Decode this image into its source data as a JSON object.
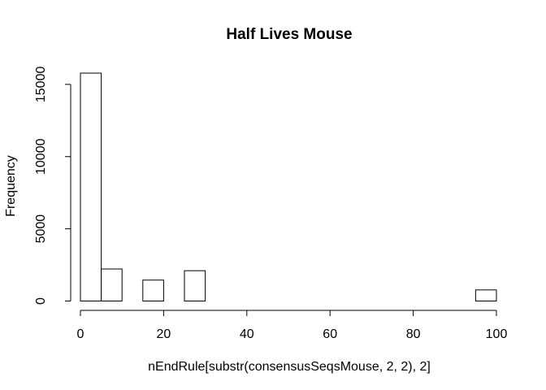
{
  "chart_data": {
    "type": "bar",
    "title": "Half Lives Mouse",
    "xlabel": "nEndRule[substr(consensusSeqsMouse, 2, 2), 2]",
    "ylabel": "Frequency",
    "bin_width": 5,
    "bins": [
      {
        "start": 0,
        "end": 5,
        "count": 15780
      },
      {
        "start": 5,
        "end": 10,
        "count": 2220
      },
      {
        "start": 10,
        "end": 15,
        "count": 0
      },
      {
        "start": 15,
        "end": 20,
        "count": 1450
      },
      {
        "start": 20,
        "end": 25,
        "count": 0
      },
      {
        "start": 25,
        "end": 30,
        "count": 2100
      },
      {
        "start": 30,
        "end": 35,
        "count": 0
      },
      {
        "start": 35,
        "end": 40,
        "count": 0
      },
      {
        "start": 40,
        "end": 45,
        "count": 0
      },
      {
        "start": 45,
        "end": 50,
        "count": 0
      },
      {
        "start": 50,
        "end": 55,
        "count": 0
      },
      {
        "start": 55,
        "end": 60,
        "count": 0
      },
      {
        "start": 60,
        "end": 65,
        "count": 0
      },
      {
        "start": 65,
        "end": 70,
        "count": 0
      },
      {
        "start": 70,
        "end": 75,
        "count": 0
      },
      {
        "start": 75,
        "end": 80,
        "count": 0
      },
      {
        "start": 80,
        "end": 85,
        "count": 0
      },
      {
        "start": 85,
        "end": 90,
        "count": 0
      },
      {
        "start": 90,
        "end": 95,
        "count": 0
      },
      {
        "start": 95,
        "end": 100,
        "count": 770
      }
    ],
    "xlim": [
      0,
      100
    ],
    "ylim": [
      0,
      15780
    ],
    "x_ticks": [
      0,
      20,
      40,
      60,
      80,
      100
    ],
    "y_ticks": [
      0,
      5000,
      10000,
      15000
    ],
    "grid": false,
    "legend": "none",
    "bar_fill": "#ffffff",
    "bar_stroke": "#000000"
  }
}
